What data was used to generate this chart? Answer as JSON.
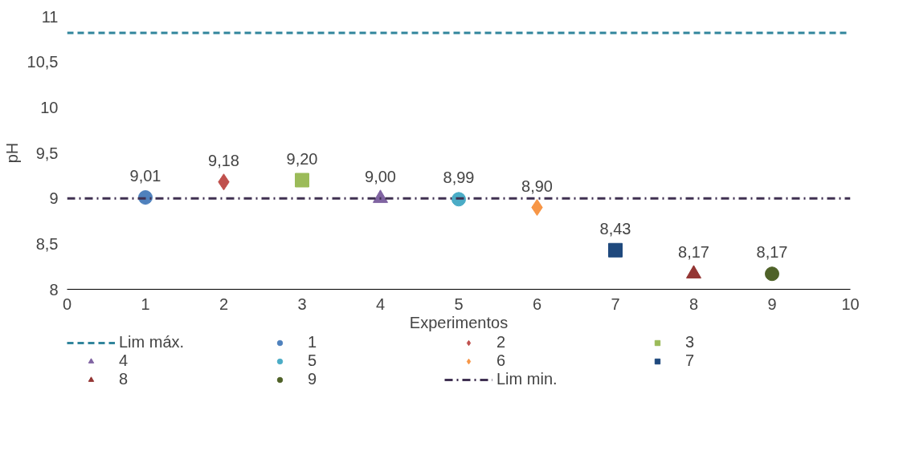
{
  "chart_data": {
    "type": "scatter",
    "xlabel": "Experimentos",
    "ylabel": "pH",
    "xlim": [
      0,
      10
    ],
    "xticks": [
      0,
      1,
      2,
      3,
      4,
      5,
      6,
      7,
      8,
      9,
      10
    ],
    "ylim": [
      8,
      11
    ],
    "yticks": [
      8,
      {
        "value": 8.5,
        "label": "8,5"
      },
      9,
      {
        "value": 9.5,
        "label": "9,5"
      },
      10,
      {
        "value": 10.5,
        "label": "10,5"
      },
      11
    ],
    "grid": false,
    "legend": "bottom",
    "series": [
      {
        "name": "Lim máx.",
        "type": "line",
        "color": "#31859c",
        "line_style": "dashed",
        "marker": "none",
        "x": [
          0,
          10
        ],
        "values": [
          10.82,
          10.82
        ]
      },
      {
        "name": "1",
        "color": "#4f81bd",
        "marker": "circle",
        "x": [
          1
        ],
        "values": [
          9.01
        ],
        "value_labels": [
          "9,01"
        ]
      },
      {
        "name": "2",
        "color": "#c0504d",
        "marker": "diamond",
        "x": [
          2
        ],
        "values": [
          9.18
        ],
        "value_labels": [
          "9,18"
        ]
      },
      {
        "name": "3",
        "color": "#9bbb59",
        "marker": "square",
        "x": [
          3
        ],
        "values": [
          9.2
        ],
        "value_labels": [
          "9,20"
        ]
      },
      {
        "name": "4",
        "color": "#8064a2",
        "marker": "triangle",
        "x": [
          4
        ],
        "values": [
          9.0
        ],
        "value_labels": [
          "9,00"
        ]
      },
      {
        "name": "5",
        "color": "#4bacc6",
        "marker": "circle",
        "x": [
          5
        ],
        "values": [
          8.99
        ],
        "value_labels": [
          "8,99"
        ]
      },
      {
        "name": "6",
        "color": "#f79646",
        "marker": "diamond",
        "x": [
          6
        ],
        "values": [
          8.9
        ],
        "value_labels": [
          "8,90"
        ]
      },
      {
        "name": "7",
        "color": "#1f497d",
        "marker": "square",
        "x": [
          7
        ],
        "values": [
          8.43
        ],
        "value_labels": [
          "8,43"
        ]
      },
      {
        "name": "8",
        "color": "#943634",
        "marker": "triangle",
        "x": [
          8
        ],
        "values": [
          8.17
        ],
        "value_labels": [
          "8,17"
        ]
      },
      {
        "name": "9",
        "color": "#4f6228",
        "marker": "circle",
        "x": [
          9
        ],
        "values": [
          8.17
        ],
        "value_labels": [
          "8,17"
        ]
      },
      {
        "name": "Lim min.",
        "type": "line",
        "color": "#403152",
        "line_style": "dashdot",
        "marker": "none",
        "x": [
          0,
          10
        ],
        "values": [
          9.0,
          9.0
        ]
      }
    ]
  }
}
